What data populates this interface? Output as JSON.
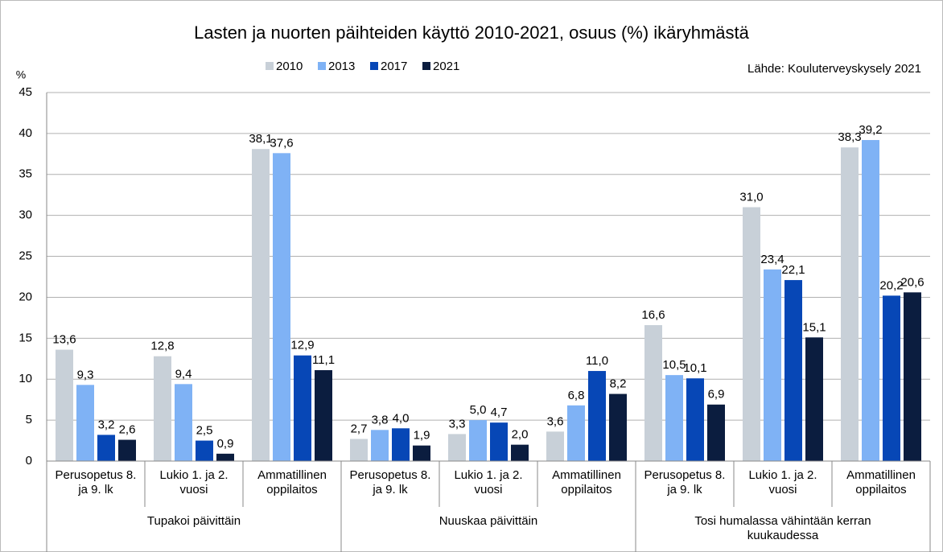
{
  "chart_data": {
    "type": "bar",
    "title": "Lasten ja nuorten päihteiden käyttö 2010-2021, osuus (%) ikäryhmästä",
    "y_label": "%",
    "source": "Lähde: Kouluterveyskysely 2021",
    "groups": [
      "Tupakoi päivittäin",
      "Nuuskaa päivittäin",
      "Tosi humalassa vähintään kerran kuukaudessa"
    ],
    "categories": [
      "Perusopetus 8. ja 9. lk",
      "Lukio 1. ja 2. vuosi",
      "Ammatillinen oppilaitos",
      "Perusopetus 8. ja 9. lk",
      "Lukio 1. ja 2. vuosi",
      "Ammatillinen oppilaitos",
      "Perusopetus 8. ja 9. lk",
      "Lukio 1. ja 2. vuosi",
      "Ammatillinen oppilaitos"
    ],
    "series": [
      {
        "name": "2010",
        "color": "#c8d0d8",
        "values": [
          13.6,
          12.8,
          38.1,
          2.7,
          3.3,
          3.6,
          16.6,
          31.0,
          38.3
        ],
        "value_labels": [
          "13,6",
          "12,8",
          "38,1",
          "2,7",
          "3,3",
          "3,6",
          "16,6",
          "31,0",
          "38,3"
        ]
      },
      {
        "name": "2013",
        "color": "#7fb2f5",
        "values": [
          9.3,
          9.4,
          37.6,
          3.8,
          5.0,
          6.8,
          10.5,
          23.4,
          39.2
        ],
        "value_labels": [
          "9,3",
          "9,4",
          "37,6",
          "3,8",
          "5,0",
          "6,8",
          "10,5",
          "23,4",
          "39,2"
        ]
      },
      {
        "name": "2017",
        "color": "#0747b6",
        "values": [
          3.2,
          2.5,
          12.9,
          4.0,
          4.7,
          11.0,
          10.1,
          22.1,
          20.2
        ],
        "value_labels": [
          "3,2",
          "2,5",
          "12,9",
          "4,0",
          "4,7",
          "11,0",
          "10,1",
          "22,1",
          "20,2"
        ]
      },
      {
        "name": "2021",
        "color": "#0b1d3f",
        "values": [
          2.6,
          0.9,
          11.1,
          1.9,
          2.0,
          8.2,
          6.9,
          15.1,
          20.6
        ],
        "value_labels": [
          "2,6",
          "0,9",
          "11,1",
          "1,9",
          "2,0",
          "8,2",
          "6,9",
          "15,1",
          "20,6"
        ]
      }
    ],
    "ylim": [
      0,
      45
    ],
    "yticks": [
      0,
      5,
      10,
      15,
      20,
      25,
      30,
      35,
      40,
      45
    ],
    "grid": true
  }
}
